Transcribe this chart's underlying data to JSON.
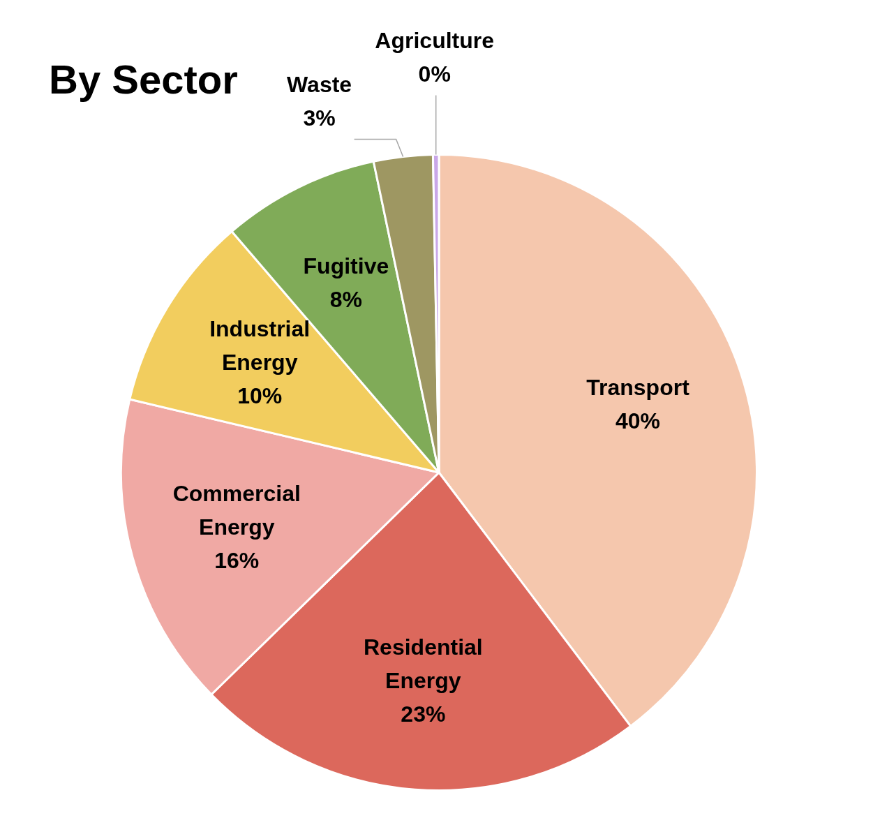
{
  "chart_data": {
    "type": "pie",
    "title": "By Sector",
    "categories": [
      "Transport",
      "Residential Energy",
      "Commercial Energy",
      "Industrial Energy",
      "Fugitive",
      "Waste",
      "Agriculture"
    ],
    "values": [
      39.7,
      23,
      16,
      10,
      8,
      3,
      0.3
    ],
    "value_labels": [
      "40%",
      "23%",
      "16%",
      "10%",
      "8%",
      "3%",
      "0%"
    ],
    "colors": [
      "#f5c7ad",
      "#dc685c",
      "#f0a9a4",
      "#f2cd5e",
      "#80ab58",
      "#9e9762",
      "#c9a7e8"
    ],
    "legend": false
  }
}
